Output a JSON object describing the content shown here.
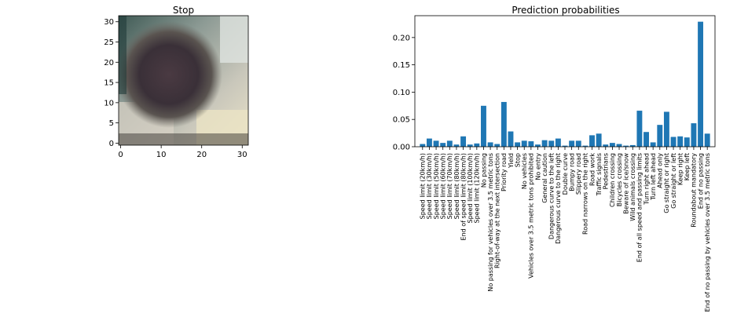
{
  "chart_data": [
    {
      "type": "image",
      "title": "Stop",
      "x_ticks": [
        "0",
        "10",
        "20",
        "30"
      ],
      "y_ticks": [
        "0",
        "5",
        "10",
        "15",
        "20",
        "25",
        "30"
      ],
      "xlim": [
        -0.5,
        31.5
      ],
      "ylim": [
        31.5,
        -0.5
      ]
    },
    {
      "type": "bar",
      "title": "Prediction probabilities",
      "color": "#1f77b4",
      "y_ticks": [
        "0.00",
        "0.05",
        "0.10",
        "0.15",
        "0.20"
      ],
      "ylim": [
        0,
        0.24
      ],
      "categories": [
        "Speed limit (20km/h)",
        "Speed limit (30km/h)",
        "Speed limit (50km/h)",
        "Speed limit (60km/h)",
        "Speed limit (70km/h)",
        "Speed limit (80km/h)",
        "End of speed limit (80km/h)",
        "Speed limit (100km/h)",
        "Speed limit (120km/h)",
        "No passing",
        "No passing for vehicles over 3.5 metric tons",
        "Right-of-way at the next intersection",
        "Priority road",
        "Yield",
        "Stop",
        "No vehicles",
        "Vehicles over 3.5 metric tons prohibited",
        "No entry",
        "General caution",
        "Dangerous curve to the left",
        "Dangerous curve to the right",
        "Double curve",
        "Bumpy road",
        "Slippery road",
        "Road narrows on the right",
        "Road work",
        "Traffic signals",
        "Pedestrians",
        "Children crossing",
        "Bicycles crossing",
        "Beware of ice/snow",
        "Wild animals crossing",
        "End of all speed and passing limits",
        "Turn right ahead",
        "Turn left ahead",
        "Ahead only",
        "Go straight or right",
        "Go straight or left",
        "Keep right",
        "Keep left",
        "Roundabout mandatory",
        "End of no passing",
        "End of no passing by vehicles over 3.5 metric tons"
      ],
      "values": [
        0.005,
        0.015,
        0.011,
        0.007,
        0.011,
        0.004,
        0.019,
        0.004,
        0.006,
        0.075,
        0.008,
        0.005,
        0.082,
        0.028,
        0.008,
        0.011,
        0.01,
        0.004,
        0.012,
        0.011,
        0.015,
        0.002,
        0.011,
        0.011,
        0.002,
        0.021,
        0.024,
        0.004,
        0.007,
        0.005,
        0.002,
        0.003,
        0.066,
        0.027,
        0.008,
        0.04,
        0.064,
        0.018,
        0.019,
        0.017,
        0.043,
        0.229,
        0.024
      ]
    }
  ]
}
